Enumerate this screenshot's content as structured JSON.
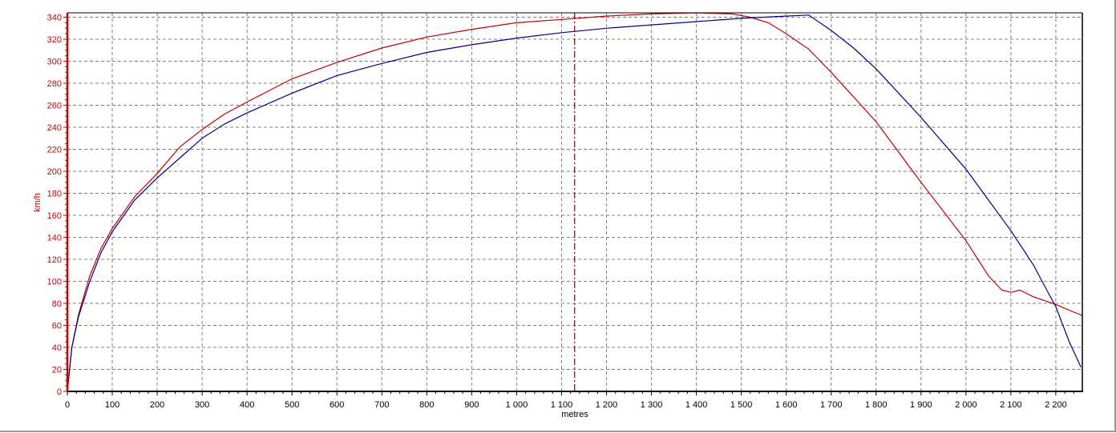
{
  "chart_data": {
    "type": "line",
    "title": "",
    "xlabel": "metres",
    "ylabel": "km/h",
    "xlim": [
      0,
      2259
    ],
    "ylim": [
      0,
      344
    ],
    "x_ticks": [
      0,
      100,
      200,
      300,
      400,
      500,
      600,
      700,
      800,
      900,
      1000,
      1100,
      1200,
      1300,
      1400,
      1500,
      1600,
      1700,
      1800,
      1900,
      2000,
      2100,
      2200
    ],
    "x_tick_labels": [
      "0",
      "100",
      "200",
      "300",
      "400",
      "500",
      "600",
      "700",
      "800",
      "900",
      "1 000",
      "1 100",
      "1 200",
      "1 300",
      "1 400",
      "1 500",
      "1 600",
      "1 700",
      "1 800",
      "1 900",
      "2 000",
      "2 100",
      "2 200"
    ],
    "y_ticks": [
      0,
      20,
      40,
      60,
      80,
      100,
      120,
      140,
      160,
      180,
      200,
      220,
      240,
      260,
      280,
      300,
      320,
      340
    ],
    "y_tick_labels": [
      "0",
      "20",
      "40",
      "60",
      "80",
      "100",
      "120",
      "140",
      "160",
      "180",
      "200",
      "220",
      "240",
      "260",
      "280",
      "300",
      "320",
      "340"
    ],
    "grid": true,
    "cursor_x": 1129,
    "colors": {
      "series_red": "#c00000",
      "series_blue": "#00008b",
      "axis_left": "#cc0000",
      "grid": "#808080",
      "cursor": "#800000"
    },
    "series": [
      {
        "color": "#c00000",
        "x": [
          0,
          10,
          25,
          50,
          75,
          100,
          150,
          200,
          250,
          300,
          350,
          400,
          500,
          600,
          700,
          800,
          900,
          1000,
          1100,
          1200,
          1300,
          1400,
          1480,
          1520,
          1560,
          1600,
          1650,
          1700,
          1800,
          1900,
          2000,
          2050,
          2080,
          2100,
          2120,
          2150,
          2200,
          2240,
          2259
        ],
        "y": [
          0,
          40,
          70,
          105,
          130,
          148,
          177,
          198,
          222,
          238,
          252,
          263,
          284,
          299,
          312,
          322,
          329,
          335,
          338,
          341,
          343,
          344,
          343,
          340,
          335,
          325,
          311,
          290,
          245,
          190,
          137,
          105,
          92,
          90,
          92,
          86,
          79,
          72,
          69
        ]
      },
      {
        "color": "#00008b",
        "x": [
          0,
          10,
          25,
          50,
          75,
          100,
          150,
          200,
          250,
          300,
          350,
          400,
          500,
          600,
          700,
          800,
          900,
          1000,
          1100,
          1200,
          1300,
          1400,
          1500,
          1600,
          1650,
          1700,
          1750,
          1800,
          1900,
          2000,
          2100,
          2150,
          2180,
          2200,
          2230,
          2256
        ],
        "y": [
          0,
          40,
          68,
          100,
          126,
          145,
          174,
          194,
          212,
          230,
          243,
          253,
          271,
          287,
          298,
          308,
          315,
          321,
          326,
          330,
          333,
          336,
          339,
          341,
          342,
          328,
          312,
          293,
          249,
          202,
          146,
          115,
          92,
          77,
          45,
          22
        ]
      }
    ]
  }
}
